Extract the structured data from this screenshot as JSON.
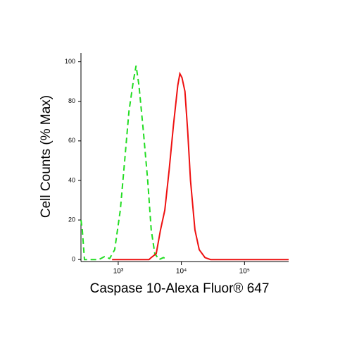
{
  "chart_data": {
    "type": "line",
    "x_label": "Caspase 10-Alexa Fluor® 647",
    "y_label": "Cell Counts (% Max)",
    "xscale": "log",
    "xlim": [
      257,
      500000
    ],
    "ylim": [
      -1,
      104.5
    ],
    "xticks": [
      {
        "value": 1000,
        "label": "10³"
      },
      {
        "value": 10000,
        "label": "10⁴"
      },
      {
        "value": 100000,
        "label": "10⁵"
      }
    ],
    "yticks": [
      0,
      20,
      40,
      60,
      80,
      100
    ],
    "series": [
      {
        "color": "#22dd22",
        "dash": true,
        "x": [
          257,
          270,
          292,
          494,
          608,
          730,
          878,
          1080,
          1266,
          1480,
          1730,
          1920,
          2130,
          2500,
          2930,
          3330,
          3800,
          4440,
          5200,
          6090
        ],
        "values": [
          20,
          15,
          0,
          0,
          1.5,
          0.5,
          5,
          25,
          50,
          75,
          90,
          98,
          88,
          65,
          40,
          15,
          3,
          0,
          1,
          0
        ]
      },
      {
        "color": "#ee1111",
        "dash": false,
        "x": [
          800,
          3070,
          3330,
          4000,
          4680,
          5470,
          6400,
          7500,
          8770,
          9470,
          10240,
          11400,
          12600,
          13950,
          16400,
          19200,
          23700,
          29000,
          500000
        ],
        "values": [
          0,
          0,
          1,
          3,
          15,
          25,
          45,
          68,
          88,
          94,
          92,
          85,
          65,
          40,
          15,
          5,
          1,
          0,
          0
        ]
      }
    ]
  }
}
